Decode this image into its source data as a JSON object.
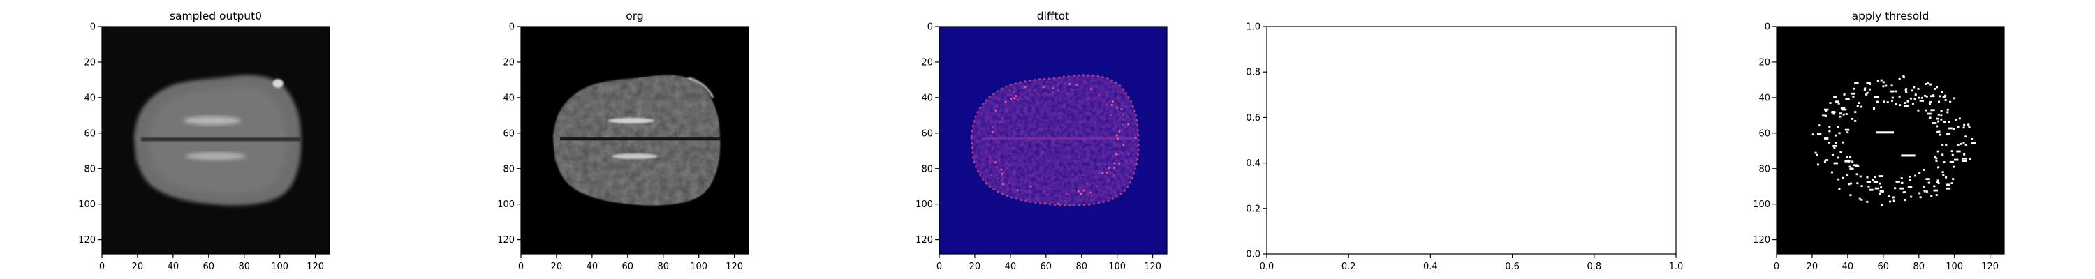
{
  "chart_data": [
    {
      "type": "heatmap",
      "title": "sampled output0",
      "xlim": [
        0,
        128
      ],
      "ylim": [
        128,
        0
      ],
      "xticks": [
        0,
        20,
        40,
        60,
        80,
        100,
        120
      ],
      "yticks": [
        0,
        20,
        40,
        60,
        80,
        100,
        120
      ],
      "tick_labels_x": [
        "0",
        "20",
        "40",
        "60",
        "80",
        "100",
        "120"
      ],
      "tick_labels_y": [
        "0",
        "20",
        "40",
        "60",
        "80",
        "100",
        "120"
      ],
      "colormap": "gray",
      "content": "brain-axial-smooth"
    },
    {
      "type": "heatmap",
      "title": "org",
      "xlim": [
        0,
        128
      ],
      "ylim": [
        128,
        0
      ],
      "xticks": [
        0,
        20,
        40,
        60,
        80,
        100,
        120
      ],
      "yticks": [
        0,
        20,
        40,
        60,
        80,
        100,
        120
      ],
      "tick_labels_x": [
        "0",
        "20",
        "40",
        "60",
        "80",
        "100",
        "120"
      ],
      "tick_labels_y": [
        "0",
        "20",
        "40",
        "60",
        "80",
        "100",
        "120"
      ],
      "colormap": "gray",
      "content": "brain-axial-original"
    },
    {
      "type": "heatmap",
      "title": "difftot",
      "xlim": [
        0,
        128
      ],
      "ylim": [
        128,
        0
      ],
      "xticks": [
        0,
        20,
        40,
        60,
        80,
        100,
        120
      ],
      "yticks": [
        0,
        20,
        40,
        60,
        80,
        100,
        120
      ],
      "tick_labels_x": [
        "0",
        "20",
        "40",
        "60",
        "80",
        "100",
        "120"
      ],
      "tick_labels_y": [
        "0",
        "20",
        "40",
        "60",
        "80",
        "100",
        "120"
      ],
      "colormap": "plasma",
      "content": "difference-map"
    },
    {
      "type": "line",
      "title": "",
      "xlim": [
        0,
        1
      ],
      "ylim": [
        0,
        1
      ],
      "xticks": [
        0,
        0.2,
        0.4,
        0.6,
        0.8,
        1.0
      ],
      "yticks": [
        0,
        0.2,
        0.4,
        0.6,
        0.8,
        1.0
      ],
      "tick_labels_x": [
        "0.0",
        "0.2",
        "0.4",
        "0.6",
        "0.8",
        "1.0"
      ],
      "tick_labels_y": [
        "0.0",
        "0.2",
        "0.4",
        "0.6",
        "0.8",
        "1.0"
      ],
      "series": []
    },
    {
      "type": "heatmap",
      "title": "apply thresold",
      "xlim": [
        0,
        128
      ],
      "ylim": [
        128,
        0
      ],
      "xticks": [
        0,
        20,
        40,
        60,
        80,
        100,
        120
      ],
      "yticks": [
        0,
        20,
        40,
        60,
        80,
        100,
        120
      ],
      "tick_labels_x": [
        "0",
        "20",
        "40",
        "60",
        "80",
        "100",
        "120"
      ],
      "tick_labels_y": [
        "0",
        "20",
        "40",
        "60",
        "80",
        "100",
        "120"
      ],
      "colormap": "binary",
      "content": "threshold-mask"
    }
  ],
  "colors": {
    "background": "#ffffff",
    "axis": "#000000",
    "image_black": "#000000",
    "plasma_low": "#0d0887",
    "plasma_mid": "#cc4778",
    "mask": "#ffffff"
  }
}
